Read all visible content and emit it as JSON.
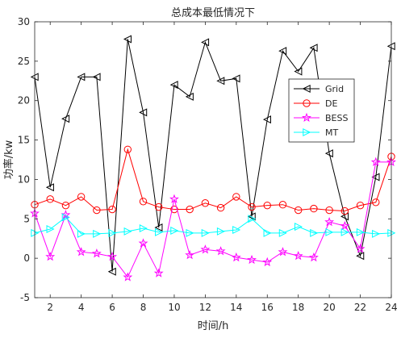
{
  "chart_data": {
    "type": "line",
    "title": "总成本最低情况下",
    "xlabel": "时间/h",
    "ylabel": "功率/kw",
    "xlim": [
      1,
      24
    ],
    "ylim": [
      -5,
      30
    ],
    "xticks": [
      2,
      4,
      6,
      8,
      10,
      12,
      14,
      16,
      18,
      20,
      22,
      24
    ],
    "yticks": [
      -5,
      0,
      5,
      10,
      15,
      20,
      25,
      30
    ],
    "x": [
      1,
      2,
      3,
      4,
      5,
      6,
      7,
      8,
      9,
      10,
      11,
      12,
      13,
      14,
      15,
      16,
      17,
      18,
      19,
      20,
      21,
      22,
      23,
      24
    ],
    "grid": false,
    "legend_position": "right",
    "series": [
      {
        "name": "Grid",
        "color": "#000000",
        "marker": "triangle-left",
        "values": [
          23.0,
          9.0,
          17.7,
          23.0,
          23.0,
          -1.7,
          27.8,
          18.5,
          3.9,
          22.0,
          20.5,
          27.4,
          22.5,
          22.8,
          5.3,
          17.6,
          26.3,
          23.7,
          26.7,
          13.3,
          5.3,
          0.3,
          10.3,
          26.9
        ]
      },
      {
        "name": "DE",
        "color": "#ff0000",
        "marker": "circle",
        "values": [
          6.8,
          7.5,
          6.7,
          7.8,
          6.1,
          6.2,
          13.8,
          7.2,
          6.5,
          6.2,
          6.2,
          7.0,
          6.4,
          7.8,
          6.5,
          6.7,
          6.8,
          6.1,
          6.3,
          6.1,
          6.0,
          6.7,
          7.1,
          12.9
        ]
      },
      {
        "name": "BESS",
        "color": "#ff00ff",
        "marker": "star",
        "values": [
          5.7,
          0.2,
          5.5,
          0.8,
          0.6,
          0.2,
          -2.4,
          1.9,
          -1.9,
          7.5,
          0.4,
          1.1,
          0.9,
          0.1,
          -0.2,
          -0.5,
          0.8,
          0.3,
          0.1,
          4.6,
          4.1,
          1.2,
          12.2,
          12.2
        ]
      },
      {
        "name": "MT",
        "color": "#00ffff",
        "marker": "triangle-right",
        "values": [
          3.2,
          3.7,
          5.2,
          3.1,
          3.1,
          3.2,
          3.4,
          3.8,
          3.3,
          3.5,
          3.2,
          3.2,
          3.4,
          3.6,
          5.0,
          3.2,
          3.2,
          4.0,
          3.2,
          3.3,
          3.3,
          3.3,
          3.1,
          3.2
        ]
      }
    ]
  }
}
